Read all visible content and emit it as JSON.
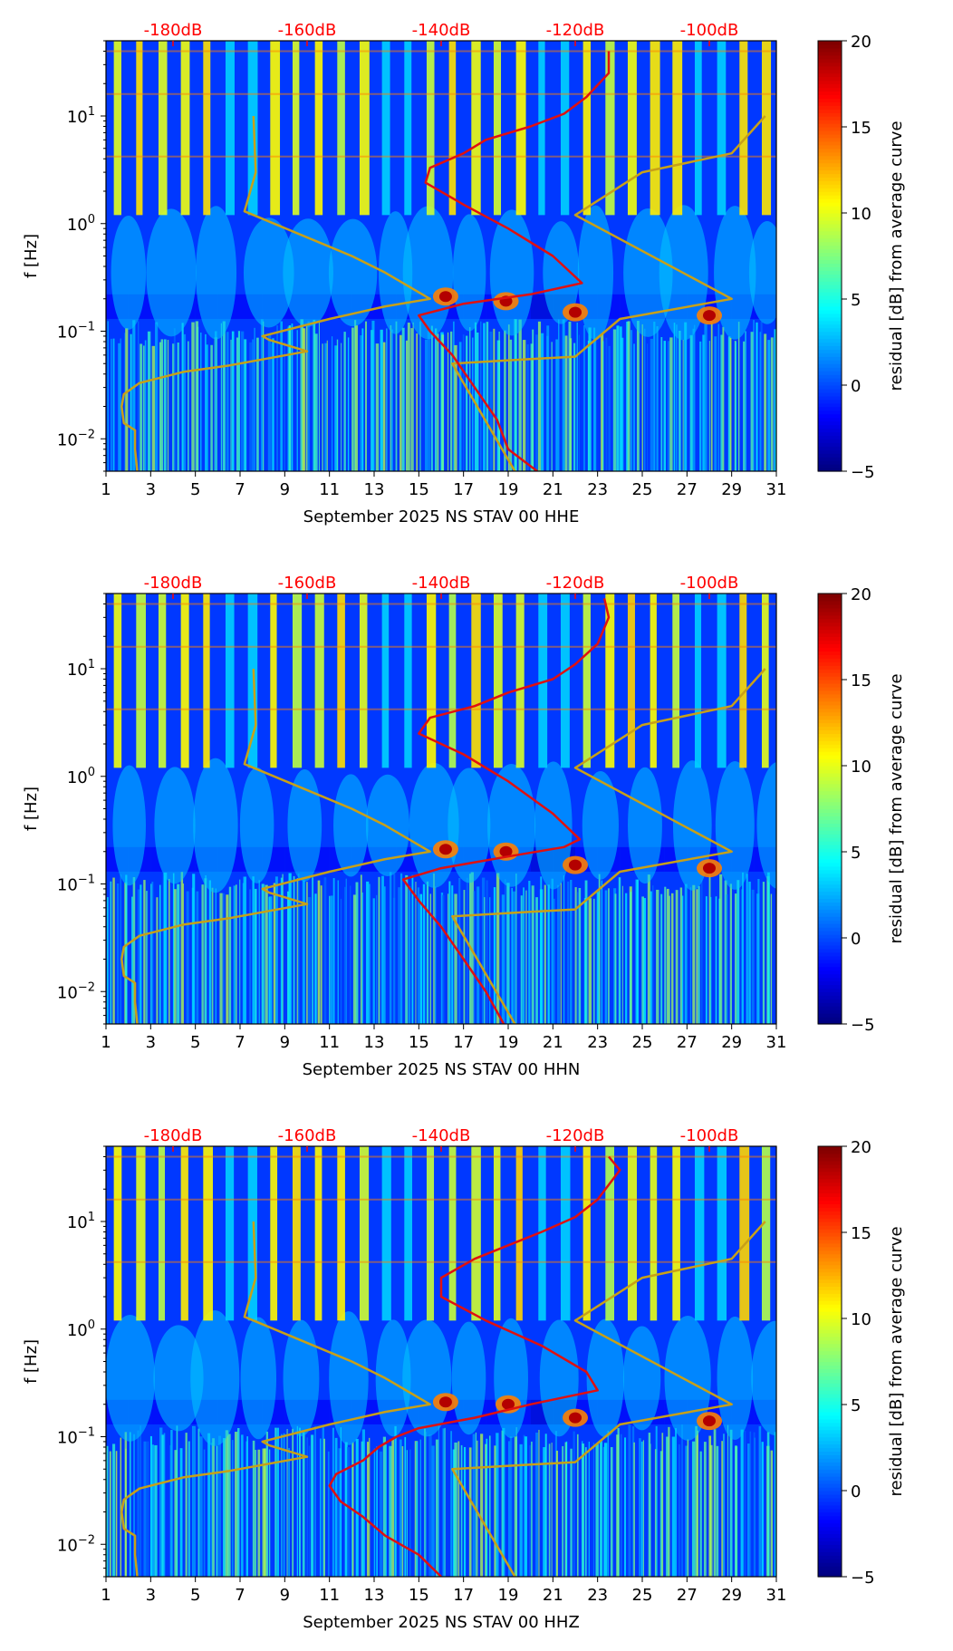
{
  "chart_data": [
    {
      "type": "heatmap",
      "title": "",
      "xlabel": "September 2025 NS STAV 00 HHE",
      "ylabel": "f [Hz]",
      "colorbar_label": "residual [dB] from average curve",
      "colorbar_ticks": [
        "20",
        "15",
        "10",
        "5",
        "0",
        "−5"
      ],
      "colorbar_range": [
        -5,
        20
      ],
      "x_ticks": [
        "1",
        "3",
        "5",
        "7",
        "9",
        "11",
        "13",
        "15",
        "17",
        "19",
        "21",
        "23",
        "25",
        "27",
        "29",
        "31"
      ],
      "x_range": [
        1,
        31
      ],
      "y_ticks": [
        {
          "label": "10",
          "exp": "1",
          "value": 10
        },
        {
          "label": "10",
          "exp": "0",
          "value": 1
        },
        {
          "label": "10",
          "exp": "−1",
          "value": 0.1
        },
        {
          "label": "10",
          "exp": "−2",
          "value": 0.01
        }
      ],
      "y_range": [
        0.005,
        50
      ],
      "db_labels": [
        "-180dB",
        "-160dB",
        "-140dB",
        "-120dB",
        "-100dB"
      ],
      "db_scale": {
        "x_at_minus180": 4.0,
        "day_per_20dB": 6.0
      },
      "noise_model_curve": {
        "color": "#c8a018",
        "points": [
          [
            2.4,
            0.005
          ],
          [
            2.3,
            0.008
          ],
          [
            2.3,
            0.012
          ],
          [
            1.8,
            0.014
          ],
          [
            1.7,
            0.02
          ],
          [
            1.8,
            0.026
          ],
          [
            2.5,
            0.033
          ],
          [
            4.5,
            0.042
          ],
          [
            6.5,
            0.048
          ],
          [
            10.0,
            0.065
          ],
          [
            8.3,
            0.083
          ],
          [
            8.0,
            0.09
          ],
          [
            11.0,
            0.13
          ],
          [
            13.5,
            0.17
          ],
          [
            15.5,
            0.2
          ],
          [
            13.5,
            0.35
          ],
          [
            12.0,
            0.5
          ],
          [
            7.2,
            1.3
          ],
          [
            7.7,
            3.0
          ],
          [
            7.6,
            10.0
          ]
        ]
      },
      "high_model_curve": {
        "color": "#c8a018",
        "points": [
          [
            19.3,
            0.005
          ],
          [
            16.5,
            0.05
          ],
          [
            20.0,
            0.055
          ],
          [
            22.0,
            0.058
          ],
          [
            24.0,
            0.13
          ],
          [
            29.0,
            0.2
          ],
          [
            22.0,
            1.2
          ],
          [
            25.0,
            3.0
          ],
          [
            29.0,
            4.5
          ],
          [
            30.5,
            10.0
          ]
        ]
      },
      "pdf_mode_curve": {
        "color": "#e01010",
        "points": [
          [
            20.3,
            0.005
          ],
          [
            19.0,
            0.008
          ],
          [
            18.5,
            0.015
          ],
          [
            17.5,
            0.03
          ],
          [
            16.5,
            0.06
          ],
          [
            15.5,
            0.1
          ],
          [
            15.0,
            0.14
          ],
          [
            17.0,
            0.18
          ],
          [
            20.0,
            0.22
          ],
          [
            22.3,
            0.28
          ],
          [
            21.0,
            0.5
          ],
          [
            19.0,
            0.9
          ],
          [
            17.0,
            1.5
          ],
          [
            15.3,
            2.4
          ],
          [
            15.5,
            3.3
          ],
          [
            17.0,
            4.5
          ],
          [
            18.0,
            6.0
          ],
          [
            20.0,
            8.0
          ],
          [
            21.5,
            10.5
          ],
          [
            22.5,
            15.0
          ],
          [
            23.5,
            25.0
          ],
          [
            23.5,
            40.0
          ]
        ]
      },
      "hot_spots": [
        {
          "day": 18.9,
          "freq": 0.19
        },
        {
          "day": 22.0,
          "freq": 0.15
        },
        {
          "day": 28.0,
          "freq": 0.14
        },
        {
          "day": 16.2,
          "freq": 0.21
        }
      ]
    },
    {
      "type": "heatmap",
      "title": "",
      "xlabel": "September 2025 NS STAV 00 HHN",
      "ylabel": "f [Hz]",
      "colorbar_label": "residual [dB] from average curve",
      "colorbar_ticks": [
        "20",
        "15",
        "10",
        "5",
        "0",
        "−5"
      ],
      "colorbar_range": [
        -5,
        20
      ],
      "x_ticks": [
        "1",
        "3",
        "5",
        "7",
        "9",
        "11",
        "13",
        "15",
        "17",
        "19",
        "21",
        "23",
        "25",
        "27",
        "29",
        "31"
      ],
      "x_range": [
        1,
        31
      ],
      "y_ticks": [
        {
          "label": "10",
          "exp": "1",
          "value": 10
        },
        {
          "label": "10",
          "exp": "0",
          "value": 1
        },
        {
          "label": "10",
          "exp": "−1",
          "value": 0.1
        },
        {
          "label": "10",
          "exp": "−2",
          "value": 0.01
        }
      ],
      "y_range": [
        0.005,
        50
      ],
      "db_labels": [
        "-180dB",
        "-160dB",
        "-140dB",
        "-120dB",
        "-100dB"
      ],
      "db_scale": {
        "x_at_minus180": 4.0,
        "day_per_20dB": 6.0
      },
      "noise_model_curve": {
        "color": "#c8a018",
        "points": [
          [
            2.4,
            0.005
          ],
          [
            2.3,
            0.008
          ],
          [
            2.3,
            0.012
          ],
          [
            1.8,
            0.014
          ],
          [
            1.7,
            0.02
          ],
          [
            1.8,
            0.026
          ],
          [
            2.5,
            0.033
          ],
          [
            4.5,
            0.042
          ],
          [
            6.5,
            0.048
          ],
          [
            10.0,
            0.065
          ],
          [
            8.3,
            0.083
          ],
          [
            8.0,
            0.09
          ],
          [
            11.0,
            0.13
          ],
          [
            13.5,
            0.17
          ],
          [
            15.5,
            0.2
          ],
          [
            13.5,
            0.35
          ],
          [
            12.0,
            0.5
          ],
          [
            7.2,
            1.3
          ],
          [
            7.7,
            3.0
          ],
          [
            7.6,
            10.0
          ]
        ]
      },
      "high_model_curve": {
        "color": "#c8a018",
        "points": [
          [
            19.3,
            0.005
          ],
          [
            16.5,
            0.05
          ],
          [
            20.0,
            0.055
          ],
          [
            22.0,
            0.058
          ],
          [
            24.0,
            0.13
          ],
          [
            29.0,
            0.2
          ],
          [
            22.0,
            1.2
          ],
          [
            25.0,
            3.0
          ],
          [
            29.0,
            4.5
          ],
          [
            30.5,
            10.0
          ]
        ]
      },
      "pdf_mode_curve": {
        "color": "#e01010",
        "points": [
          [
            18.8,
            0.005
          ],
          [
            18.0,
            0.01
          ],
          [
            17.0,
            0.02
          ],
          [
            16.0,
            0.04
          ],
          [
            15.0,
            0.07
          ],
          [
            14.3,
            0.11
          ],
          [
            16.0,
            0.14
          ],
          [
            19.0,
            0.18
          ],
          [
            21.5,
            0.22
          ],
          [
            22.2,
            0.26
          ],
          [
            21.0,
            0.45
          ],
          [
            19.0,
            0.9
          ],
          [
            17.0,
            1.6
          ],
          [
            15.0,
            2.5
          ],
          [
            15.5,
            3.5
          ],
          [
            17.5,
            4.5
          ],
          [
            19.0,
            6.0
          ],
          [
            21.0,
            8.0
          ],
          [
            22.0,
            11.0
          ],
          [
            23.0,
            17.0
          ],
          [
            23.5,
            30.0
          ],
          [
            23.3,
            45.0
          ]
        ]
      },
      "hot_spots": [
        {
          "day": 18.9,
          "freq": 0.2
        },
        {
          "day": 22.0,
          "freq": 0.15
        },
        {
          "day": 28.0,
          "freq": 0.14
        },
        {
          "day": 16.2,
          "freq": 0.21
        }
      ]
    },
    {
      "type": "heatmap",
      "title": "",
      "xlabel": "September 2025 NS STAV 00 HHZ",
      "ylabel": "f [Hz]",
      "colorbar_label": "residual [dB] from average curve",
      "colorbar_ticks": [
        "20",
        "15",
        "10",
        "5",
        "0",
        "−5"
      ],
      "colorbar_range": [
        -5,
        20
      ],
      "x_ticks": [
        "1",
        "3",
        "5",
        "7",
        "9",
        "11",
        "13",
        "15",
        "17",
        "19",
        "21",
        "23",
        "25",
        "27",
        "29",
        "31"
      ],
      "x_range": [
        1,
        31
      ],
      "y_ticks": [
        {
          "label": "10",
          "exp": "1",
          "value": 10
        },
        {
          "label": "10",
          "exp": "0",
          "value": 1
        },
        {
          "label": "10",
          "exp": "−1",
          "value": 0.1
        },
        {
          "label": "10",
          "exp": "−2",
          "value": 0.01
        }
      ],
      "y_range": [
        0.005,
        50
      ],
      "db_labels": [
        "-180dB",
        "-160dB",
        "-140dB",
        "-120dB",
        "-100dB"
      ],
      "db_scale": {
        "x_at_minus180": 4.0,
        "day_per_20dB": 6.0
      },
      "noise_model_curve": {
        "color": "#c8a018",
        "points": [
          [
            2.4,
            0.005
          ],
          [
            2.3,
            0.008
          ],
          [
            2.3,
            0.012
          ],
          [
            1.8,
            0.014
          ],
          [
            1.7,
            0.02
          ],
          [
            1.8,
            0.026
          ],
          [
            2.5,
            0.033
          ],
          [
            4.5,
            0.042
          ],
          [
            6.5,
            0.048
          ],
          [
            10.0,
            0.065
          ],
          [
            8.3,
            0.083
          ],
          [
            8.0,
            0.09
          ],
          [
            11.0,
            0.13
          ],
          [
            13.5,
            0.17
          ],
          [
            15.5,
            0.2
          ],
          [
            13.5,
            0.35
          ],
          [
            12.0,
            0.5
          ],
          [
            7.2,
            1.3
          ],
          [
            7.7,
            3.0
          ],
          [
            7.6,
            10.0
          ]
        ]
      },
      "high_model_curve": {
        "color": "#c8a018",
        "points": [
          [
            19.3,
            0.005
          ],
          [
            16.5,
            0.05
          ],
          [
            20.0,
            0.055
          ],
          [
            22.0,
            0.058
          ],
          [
            24.0,
            0.13
          ],
          [
            29.0,
            0.2
          ],
          [
            22.0,
            1.2
          ],
          [
            25.0,
            3.0
          ],
          [
            29.0,
            4.5
          ],
          [
            30.5,
            10.0
          ]
        ]
      },
      "pdf_mode_curve": {
        "color": "#e01010",
        "points": [
          [
            16.0,
            0.005
          ],
          [
            15.0,
            0.008
          ],
          [
            13.5,
            0.012
          ],
          [
            12.5,
            0.018
          ],
          [
            11.5,
            0.025
          ],
          [
            11.0,
            0.035
          ],
          [
            11.3,
            0.045
          ],
          [
            12.5,
            0.06
          ],
          [
            13.2,
            0.08
          ],
          [
            14.0,
            0.1
          ],
          [
            15.0,
            0.12
          ],
          [
            17.5,
            0.15
          ],
          [
            20.0,
            0.2
          ],
          [
            23.0,
            0.27
          ],
          [
            22.5,
            0.4
          ],
          [
            20.5,
            0.7
          ],
          [
            18.0,
            1.2
          ],
          [
            16.0,
            2.0
          ],
          [
            16.0,
            3.0
          ],
          [
            17.5,
            4.5
          ],
          [
            19.0,
            6.0
          ],
          [
            20.5,
            8.0
          ],
          [
            22.0,
            11.0
          ],
          [
            23.0,
            16.0
          ],
          [
            24.0,
            30.0
          ],
          [
            23.5,
            40.0
          ]
        ]
      },
      "hot_spots": [
        {
          "day": 19.0,
          "freq": 0.2
        },
        {
          "day": 22.0,
          "freq": 0.15
        },
        {
          "day": 28.0,
          "freq": 0.14
        },
        {
          "day": 16.2,
          "freq": 0.21
        }
      ]
    }
  ]
}
